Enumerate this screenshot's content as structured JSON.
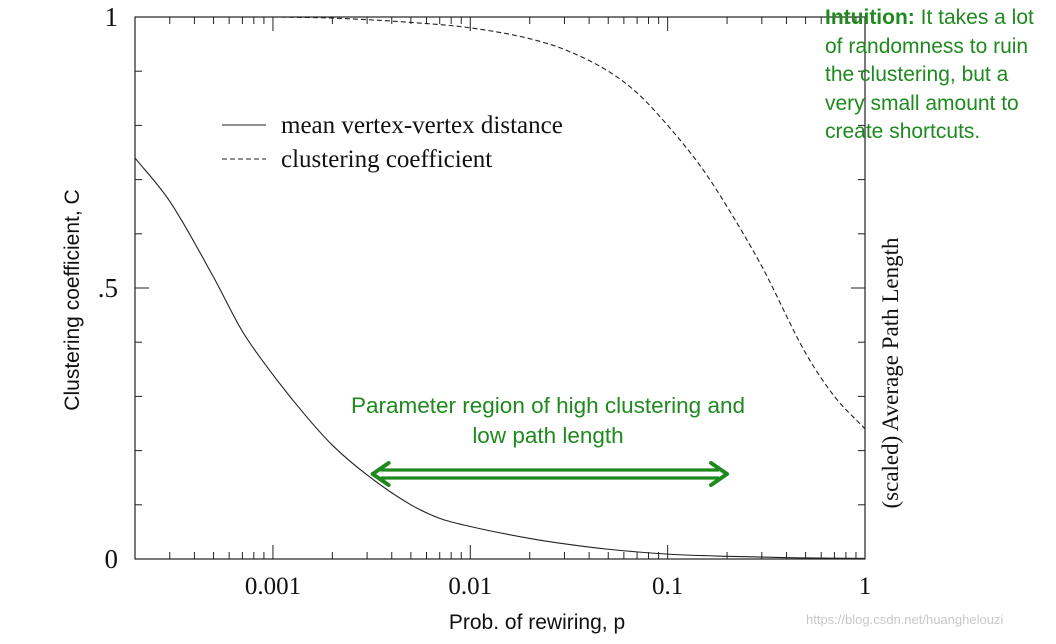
{
  "chart_data": {
    "type": "line",
    "x_scale": "log",
    "xlim": [
      0.0002,
      1
    ],
    "ylim": [
      0,
      1
    ],
    "xlabel": "Prob. of rewiring, p",
    "ylabel_left": "Clustering coefficient, C",
    "ylabel_right": "(scaled) Average Path Length",
    "x_ticks": [
      0.001,
      0.01,
      0.1,
      1
    ],
    "x_tick_labels": [
      "0.001",
      "0.01",
      "0.1",
      "1"
    ],
    "y_ticks": [
      0,
      0.5,
      1
    ],
    "y_tick_labels": [
      "0",
      ".5",
      "1"
    ],
    "grid": false,
    "legend_position": "top-left",
    "legend": [
      "mean vertex-vertex distance",
      "clustering coefficient"
    ],
    "series": [
      {
        "name": "mean vertex-vertex distance",
        "style": "solid",
        "x": [
          0.0002,
          0.0003,
          0.0005,
          0.0007,
          0.001,
          0.0015,
          0.002,
          0.003,
          0.005,
          0.007,
          0.01,
          0.02,
          0.03,
          0.05,
          0.1,
          0.2,
          0.5,
          1
        ],
        "y": [
          0.74,
          0.66,
          0.52,
          0.42,
          0.34,
          0.26,
          0.21,
          0.155,
          0.1,
          0.075,
          0.06,
          0.038,
          0.028,
          0.018,
          0.009,
          0.005,
          0.002,
          0.001
        ]
      },
      {
        "name": "clustering coefficient",
        "style": "dashed",
        "x": [
          0.001,
          0.002,
          0.005,
          0.01,
          0.02,
          0.03,
          0.05,
          0.07,
          0.1,
          0.15,
          0.2,
          0.3,
          0.5,
          0.7,
          1
        ],
        "y": [
          1.0,
          0.998,
          0.99,
          0.98,
          0.96,
          0.94,
          0.9,
          0.86,
          0.8,
          0.72,
          0.65,
          0.54,
          0.38,
          0.3,
          0.24
        ]
      }
    ]
  },
  "annotations": {
    "intuition_label": "Intuition:",
    "intuition_text": " It takes a lot of randomness to ruin the clustering, but a very small amount to create shortcuts.",
    "region_label": "Parameter region of high clustering and low path length",
    "region_range": [
      0.0032,
      0.2
    ],
    "accent_color": "#1e8a1e"
  },
  "watermark": "https://blog.csdn.net/huanghelouzi"
}
